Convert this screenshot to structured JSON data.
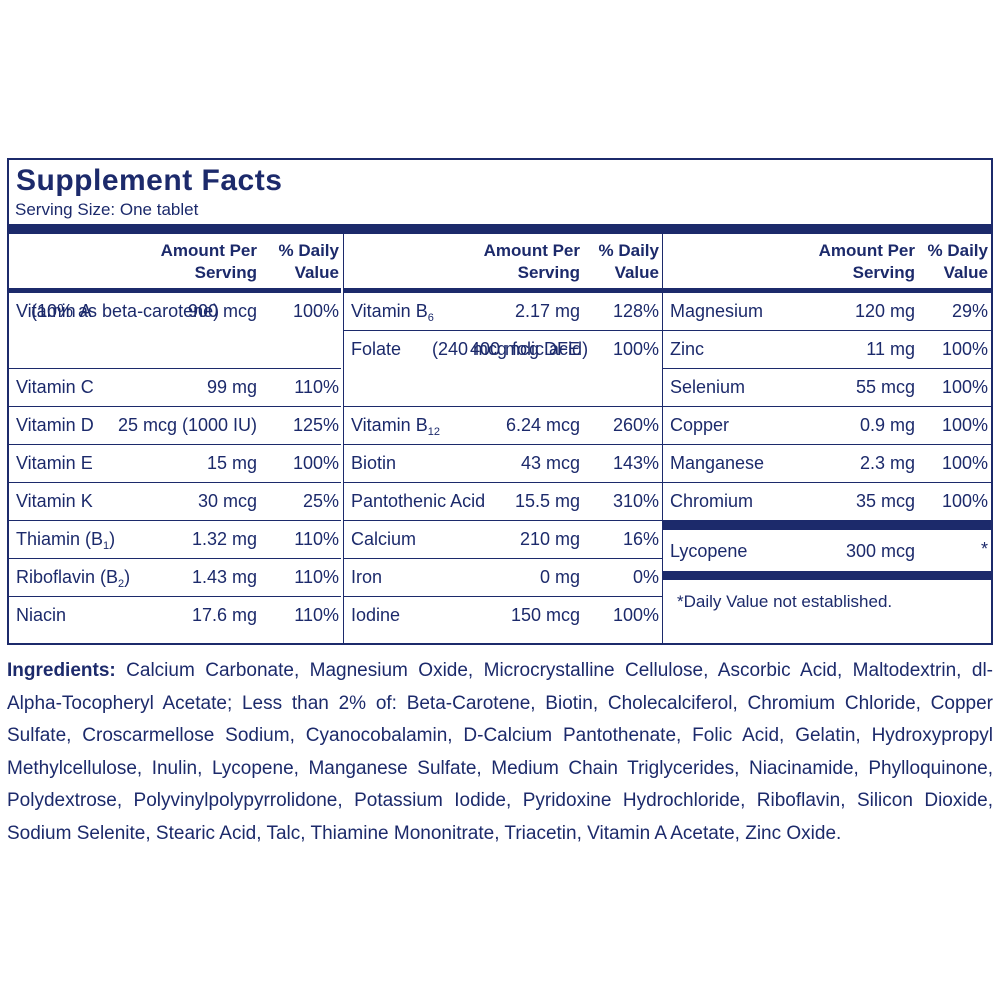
{
  "title": "Supplement Facts",
  "serving_size": "Serving Size: One tablet",
  "headers": {
    "amount": [
      "Amount Per",
      "Serving"
    ],
    "daily_value": [
      "% Daily",
      "Value"
    ]
  },
  "col1": [
    {
      "name": "Vitamin A",
      "amount": "900 mcg",
      "dv": "100%",
      "note": "(10% as beta-carotene)"
    },
    {
      "name": "Vitamin C",
      "amount": "99 mg",
      "dv": "110%"
    },
    {
      "name": "Vitamin D",
      "amount": "25 mcg (1000 IU)",
      "dv": "125%"
    },
    {
      "name": "Vitamin E",
      "amount": "15 mg",
      "dv": "100%"
    },
    {
      "name": "Vitamin K",
      "amount": "30 mcg",
      "dv": "25%"
    },
    {
      "name": "Thiamin (B",
      "sub": "1",
      "suffix": ")",
      "amount": "1.32 mg",
      "dv": "110%"
    },
    {
      "name": "Riboflavin (B",
      "sub": "2",
      "suffix": ")",
      "amount": "1.43 mg",
      "dv": "110%"
    },
    {
      "name": "Niacin",
      "amount": "17.6 mg",
      "dv": "110%"
    }
  ],
  "col2": [
    {
      "name": "Vitamin B",
      "sub": "6",
      "amount": "2.17 mg",
      "dv": "128%"
    },
    {
      "name": "Folate",
      "amount": "400 mcg DFE",
      "dv": "100%",
      "note": "(240 mcg folic acid)"
    },
    {
      "name": "Vitamin B",
      "sub": "12",
      "amount": "6.24 mcg",
      "dv": "260%"
    },
    {
      "name": "Biotin",
      "amount": "43 mcg",
      "dv": "143%"
    },
    {
      "name": "Pantothenic Acid",
      "amount": "15.5 mg",
      "dv": "310%"
    },
    {
      "name": "Calcium",
      "amount": "210 mg",
      "dv": "16%"
    },
    {
      "name": "Iron",
      "amount": "0 mg",
      "dv": "0%"
    },
    {
      "name": "Iodine",
      "amount": "150 mcg",
      "dv": "100%"
    }
  ],
  "col3": [
    {
      "name": "Magnesium",
      "amount": "120 mg",
      "dv": "29%"
    },
    {
      "name": "Zinc",
      "amount": "11 mg",
      "dv": "100%"
    },
    {
      "name": "Selenium",
      "amount": "55 mcg",
      "dv": "100%"
    },
    {
      "name": "Copper",
      "amount": "0.9 mg",
      "dv": "100%"
    },
    {
      "name": "Manganese",
      "amount": "2.3 mg",
      "dv": "100%"
    },
    {
      "name": "Chromium",
      "amount": "35 mcg",
      "dv": "100%"
    }
  ],
  "lycopene": {
    "name": "Lycopene",
    "amount": "300 mcg",
    "dv": "*"
  },
  "footnote": "*Daily Value not established.",
  "ingredients": {
    "label": "Ingredients:",
    "text": "Calcium Carbonate, Magnesium Oxide, Microcrystalline Cellulose, Ascorbic Acid, Maltodextrin, dl-Alpha-Tocopheryl Acetate; Less than 2% of: Beta-Carotene, Biotin, Cholecalciferol, Chromium Chloride, Copper Sulfate, Croscarmellose Sodium, Cyanocobalamin, D-Calcium Pantothenate, Folic Acid, Gelatin, Hydroxypropyl Methylcellulose, Inulin, Lycopene, Manganese Sulfate, Medium Chain Triglycerides, Niacinamide, Phylloquinone, Polydextrose, Polyvinylpolypyrrolidone, Potassium Iodide, Pyridoxine Hydrochloride, Riboflavin, Silicon Dioxide, Sodium Selenite, Stearic Acid, Talc, Thiamine Mononitrate, Triacetin, Vitamin A Acetate, Zinc Oxide."
  }
}
